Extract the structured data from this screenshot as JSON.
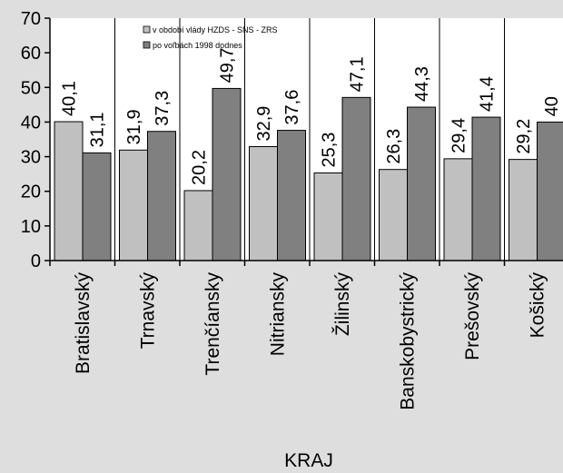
{
  "chart_data": {
    "type": "bar",
    "title": "",
    "xlabel": "KRAJ",
    "ylabel": "",
    "ylim": [
      0,
      70
    ],
    "yticks": [
      0,
      10,
      20,
      30,
      40,
      50,
      60,
      70
    ],
    "grid": false,
    "legend": "top-center",
    "categories": [
      "Bratislavský",
      "Trnavský",
      "Trenčíansky",
      "Nitriansky",
      "Žilinský",
      "Banskobystrický",
      "Prešovský",
      "Košický"
    ],
    "series": [
      {
        "name": "v období vlády HZDS - SNS - ZRS",
        "color": "#c0c0c0",
        "values": [
          40.1,
          31.9,
          20.2,
          32.9,
          25.3,
          26.3,
          29.4,
          29.2
        ],
        "labels": [
          "40,1",
          "31,9",
          "20,2",
          "32,9",
          "25,3",
          "26,3",
          "29,4",
          "29,2"
        ]
      },
      {
        "name": "po voľbách 1998 dodnes",
        "color": "#808080",
        "values": [
          31.1,
          37.3,
          49.7,
          37.6,
          47.1,
          44.3,
          41.4,
          40
        ],
        "labels": [
          "31,1",
          "37,3",
          "49,7",
          "37,6",
          "47,1",
          "44,3",
          "41,4",
          "40"
        ]
      }
    ]
  }
}
